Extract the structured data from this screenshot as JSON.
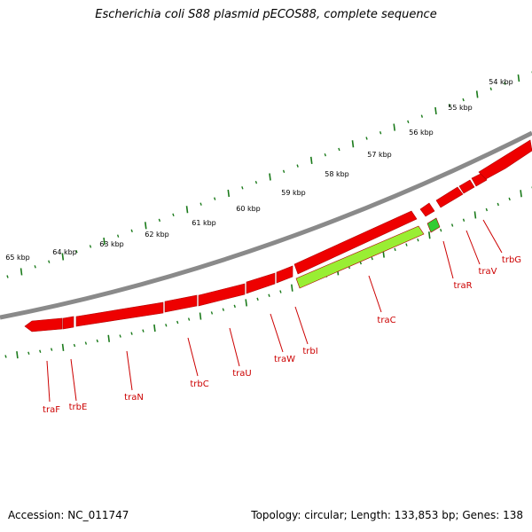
{
  "title": "Escherichia coli S88 plasmid pECOS88, complete sequence",
  "footer": {
    "accession": "Accession: NC_011747",
    "summary": "Topology: circular; Length: 133,853 bp; Genes: 138"
  },
  "colors": {
    "backbone": "#8a8a8a",
    "gene_forward": "#ee0000",
    "gene_reverse": "#99ee33",
    "gene_reverse_small": "#33cc33",
    "ticks": "#1a7a1a",
    "label": "#cc0000"
  },
  "scale": {
    "ticks": [
      "54 kbp",
      "55 kbp",
      "56 kbp",
      "57 kbp",
      "58 kbp",
      "59 kbp",
      "60 kbp",
      "61 kbp",
      "62 kbp",
      "63 kbp",
      "64 kbp",
      "65 kbp"
    ]
  },
  "gene_labels": [
    "trbG",
    "traV",
    "traR",
    "traC",
    "trbI",
    "traW",
    "traU",
    "trbC",
    "traN",
    "trbE",
    "traF"
  ]
}
